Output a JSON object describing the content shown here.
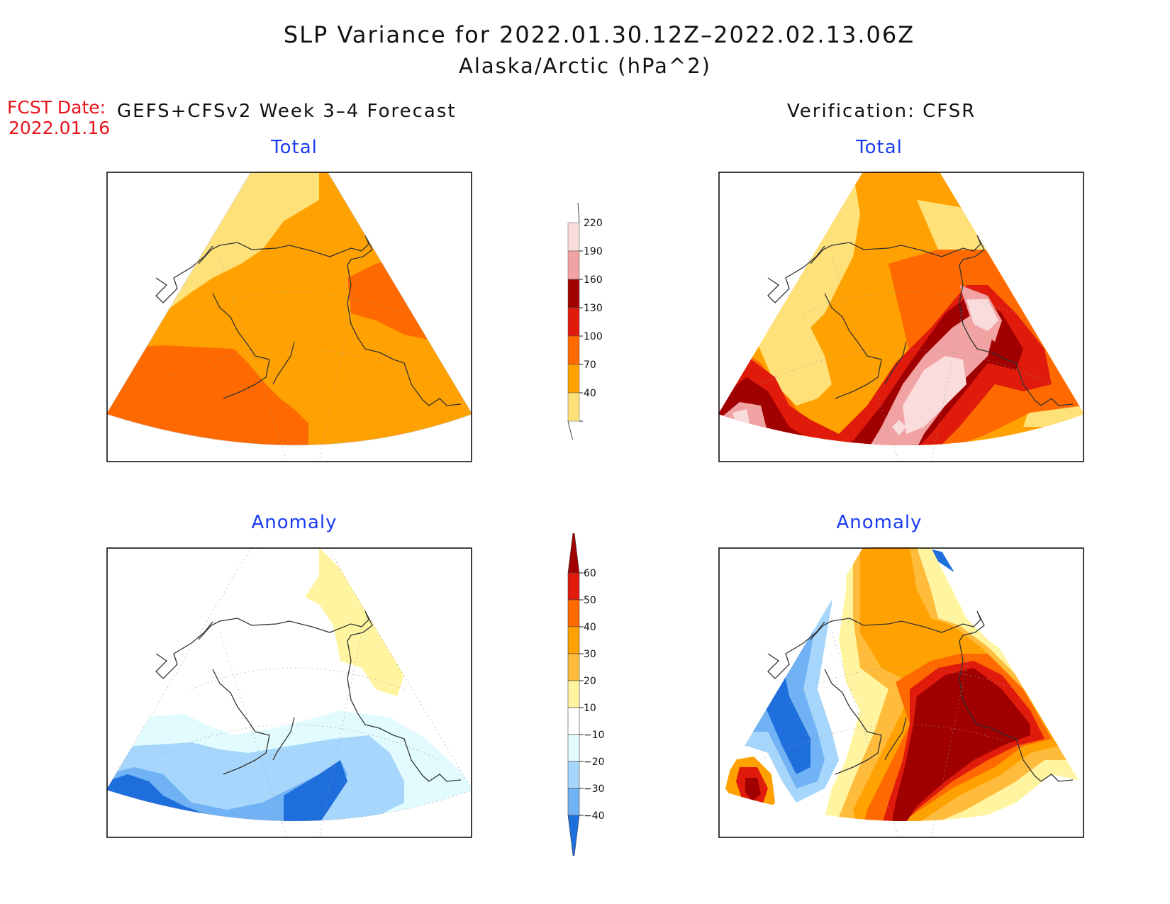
{
  "header": {
    "title": "SLP Variance for 2022.01.30.12Z–2022.02.13.06Z",
    "subtitle": "Alaska/Arctic (hPa^2)",
    "fcst_label": "FCST Date:",
    "fcst_date": "2022.01.16",
    "left_heading": "GEFS+CFSv2 Week 3–4 Forecast",
    "right_heading": "Verification: CFSR"
  },
  "panels": {
    "forecast_total": "Total",
    "verification_total": "Total",
    "forecast_anomaly": "Anomaly",
    "verification_anomaly": "Anomaly"
  },
  "colorbars": {
    "total": {
      "labels": [
        "220",
        "190",
        "160",
        "130",
        "100",
        "70",
        "40"
      ],
      "colors": [
        "#fbdcdc",
        "#f1a2a2",
        "#a00000",
        "#e01b0b",
        "#ff6a00",
        "#ffa100",
        "#ffe17a"
      ]
    },
    "anomaly": {
      "labels": [
        "60",
        "50",
        "40",
        "30",
        "20",
        "10",
        "−10",
        "−20",
        "−30",
        "−40"
      ],
      "colors": [
        "#a00000",
        "#e01b0b",
        "#ff6a00",
        "#ffa100",
        "#ffbc3c",
        "#fff5a0",
        "#ffffff",
        "#e1fbff",
        "#a6d6fb",
        "#71b2f5",
        "#1e6fdc"
      ]
    }
  }
}
